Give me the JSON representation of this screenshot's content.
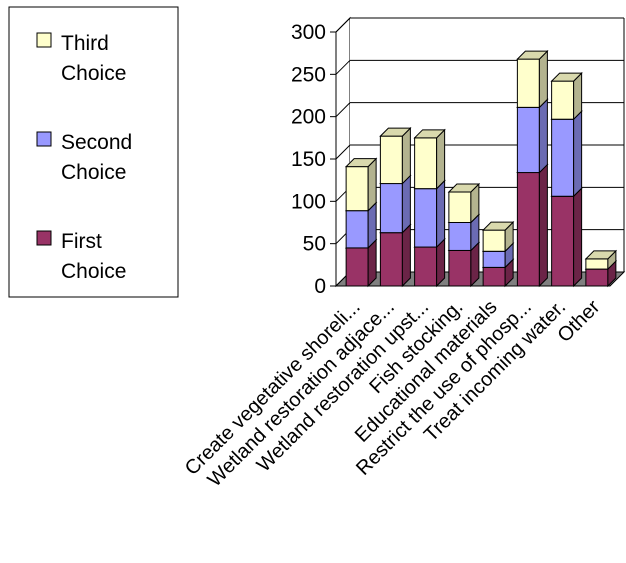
{
  "chart_data": {
    "type": "bar",
    "stacked": true,
    "three_d": true,
    "categories": [
      "Create vegetative shoreli...",
      "Wetland restoration adjace...",
      "Wetland restoration upst...",
      "Fish stocking.",
      "Educational materials",
      "Restrict the use of phosp...",
      "Treat incoming water.",
      "Other"
    ],
    "series": [
      {
        "name": "First Choice",
        "color": "#993366",
        "values": [
          45,
          63,
          46,
          42,
          22,
          134,
          106,
          20
        ]
      },
      {
        "name": "Second Choice",
        "color": "#9999ff",
        "values": [
          44,
          58,
          69,
          33,
          19,
          77,
          91,
          0
        ]
      },
      {
        "name": "Third Choice",
        "color": "#ffffcc",
        "values": [
          52,
          56,
          60,
          36,
          25,
          57,
          45,
          12
        ]
      }
    ],
    "yticks": [
      0,
      50,
      100,
      150,
      200,
      250,
      300
    ],
    "ylim": [
      0,
      300
    ],
    "grid": true,
    "legend_position": "left",
    "floor_color": "#808080"
  }
}
